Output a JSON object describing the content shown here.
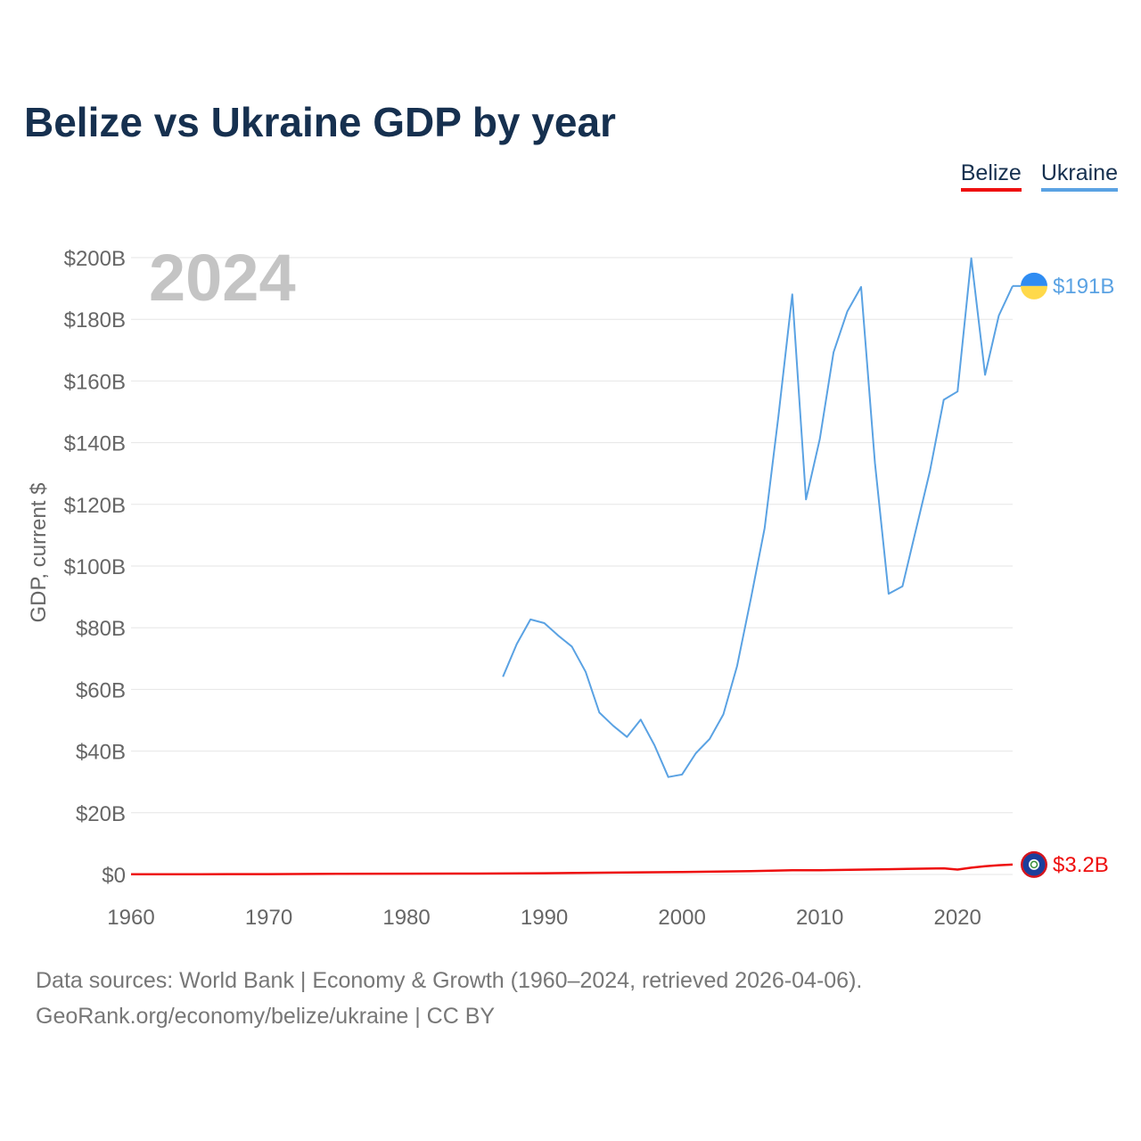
{
  "title": "Belize vs Ukraine GDP by year",
  "legend": {
    "belize": "Belize",
    "ukraine": "Ukraine"
  },
  "source": {
    "line1": "Data sources: World Bank | Economy & Growth (1960–2024, retrieved 2026-04-06).",
    "line2": "GeoRank.org/economy/belize/ukraine | CC BY"
  },
  "colors": {
    "belize": "#ee0e0e",
    "ukraine": "#5aa2e3",
    "title": "#16304f",
    "year_watermark": "#c4c4c4"
  },
  "chart_data": {
    "type": "line",
    "title": "Belize vs Ukraine GDP by year",
    "ylabel": "GDP, current $",
    "xlabel": "",
    "xlim": [
      1960,
      2024
    ],
    "ylim": [
      0,
      200
    ],
    "y_unit": "billion USD",
    "year_label": "2024",
    "x_ticks": [
      "1960",
      "1970",
      "1980",
      "1990",
      "2000",
      "2010",
      "2020"
    ],
    "y_ticks": [
      "$0",
      "$20B",
      "$40B",
      "$60B",
      "$80B",
      "$100B",
      "$120B",
      "$140B",
      "$160B",
      "$180B",
      "$200B"
    ],
    "grid": true,
    "series": [
      {
        "name": "Belize",
        "end_label": "$3.2B",
        "x": [
          1960,
          1965,
          1970,
          1975,
          1980,
          1985,
          1990,
          1995,
          2000,
          2005,
          2008,
          2010,
          2015,
          2019,
          2020,
          2021,
          2022,
          2023,
          2024
        ],
        "values": [
          0.05,
          0.08,
          0.12,
          0.2,
          0.25,
          0.3,
          0.4,
          0.6,
          0.8,
          1.1,
          1.4,
          1.4,
          1.7,
          2.0,
          1.6,
          2.2,
          2.7,
          3.0,
          3.2
        ]
      },
      {
        "name": "Ukraine",
        "end_label": "$191B",
        "x": [
          1987,
          1988,
          1989,
          1990,
          1991,
          1992,
          1993,
          1994,
          1995,
          1996,
          1997,
          1998,
          1999,
          2000,
          2001,
          2002,
          2003,
          2004,
          2005,
          2006,
          2007,
          2008,
          2009,
          2010,
          2011,
          2012,
          2013,
          2014,
          2015,
          2016,
          2017,
          2018,
          2019,
          2020,
          2021,
          2022,
          2023,
          2024
        ],
        "values": [
          64.1,
          74.7,
          82.7,
          81.5,
          77.5,
          73.9,
          65.7,
          52.5,
          48.2,
          44.6,
          50.2,
          41.9,
          31.6,
          32.4,
          39.3,
          43.9,
          51.9,
          67.6,
          89.5,
          112.3,
          148.7,
          188.1,
          121.6,
          141.2,
          169.3,
          182.6,
          190.5,
          133.5,
          91.0,
          93.4,
          112.1,
          130.9,
          153.9,
          156.6,
          199.8,
          162.0,
          181.2,
          190.8
        ]
      }
    ]
  }
}
